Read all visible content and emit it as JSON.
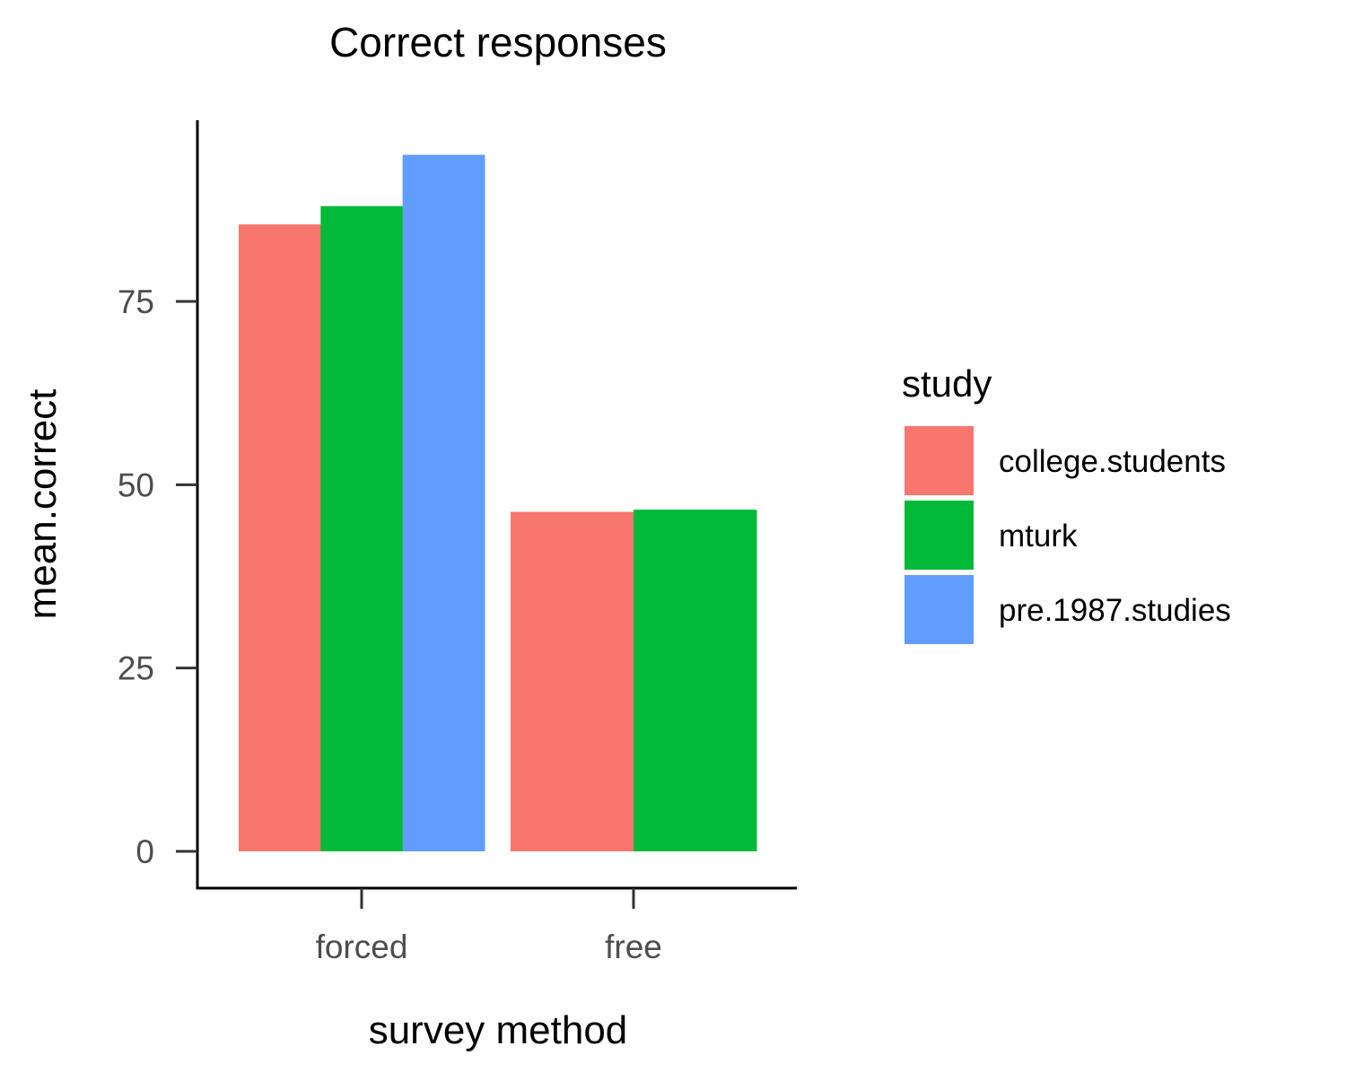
{
  "chart_data": {
    "type": "bar",
    "title": "Correct responses",
    "xlabel": "survey method",
    "ylabel": "mean.correct",
    "categories": [
      "forced",
      "free"
    ],
    "series": [
      {
        "name": "college.students",
        "color": "#F8766D",
        "values": [
          85.5,
          46.3
        ]
      },
      {
        "name": "mturk",
        "color": "#00BA38",
        "values": [
          88.0,
          46.6
        ]
      },
      {
        "name": "pre.1987.studies",
        "color": "#619CFF",
        "values": [
          95.0,
          null
        ]
      }
    ],
    "yticks": [
      0,
      25,
      50,
      75
    ],
    "ylim": [
      -5,
      100
    ],
    "grid": false,
    "legend": {
      "title": "study",
      "position": "right"
    }
  }
}
